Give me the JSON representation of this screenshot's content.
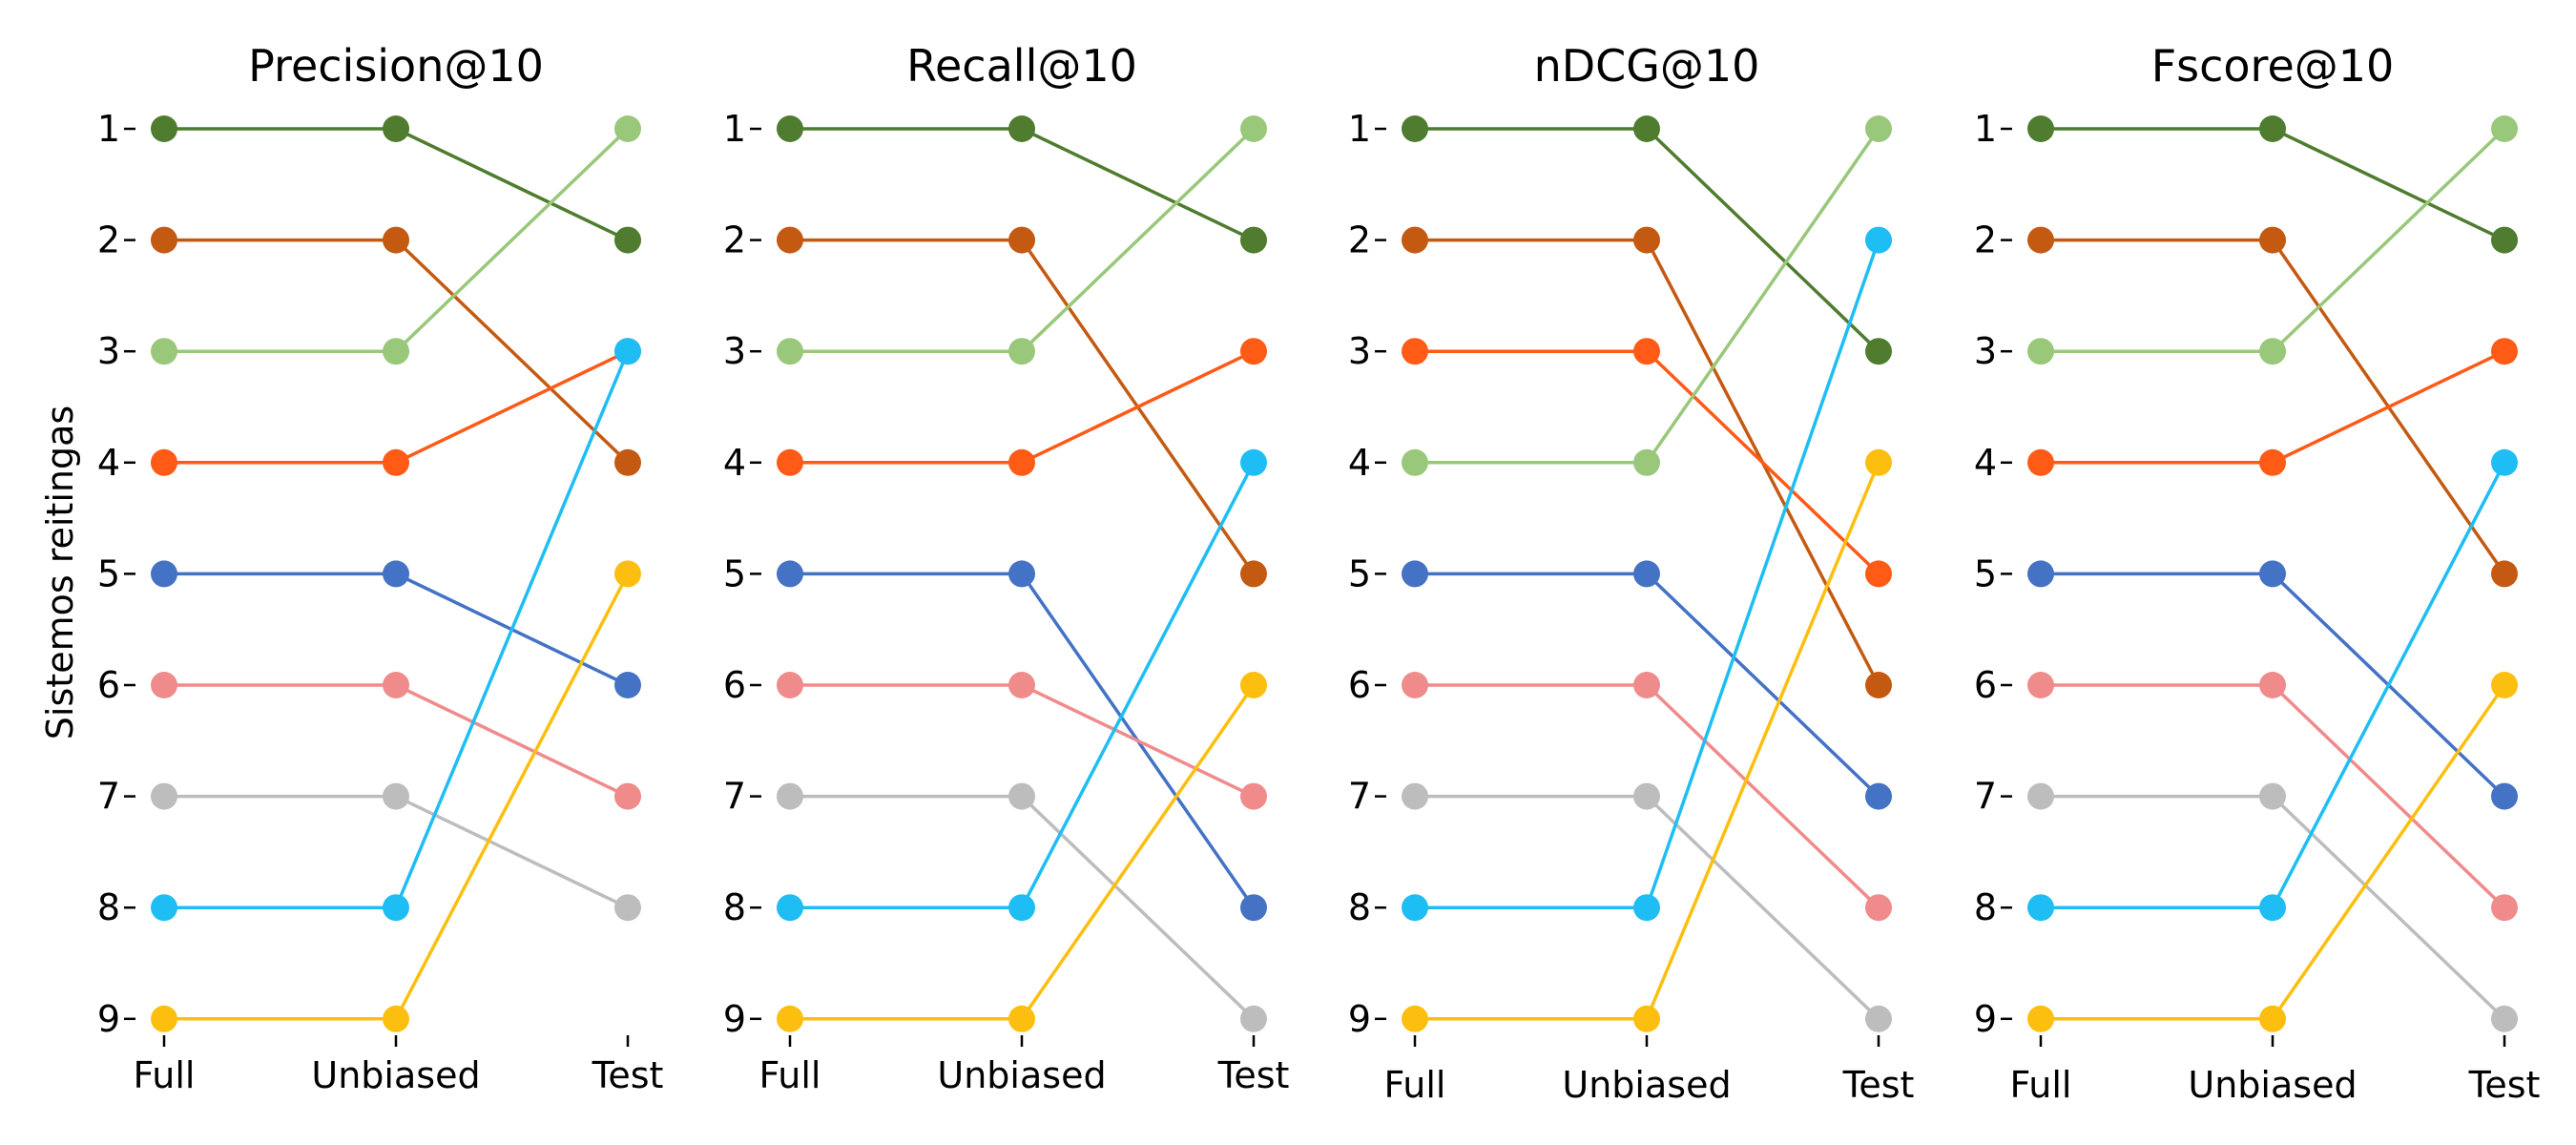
{
  "chart_data": {
    "type": "line",
    "ylabel": "Sistemos reitingas",
    "ylim": [
      1,
      9
    ],
    "y_inverted": true,
    "yticks": [
      "1",
      "2",
      "3",
      "4",
      "5",
      "6",
      "7",
      "8",
      "9"
    ],
    "categories": [
      "Full",
      "Unbiased",
      "Test"
    ],
    "grid": false,
    "legend": "none",
    "panels": [
      {
        "title": "Precision@10",
        "series": [
          {
            "color": "#4f7c2f",
            "values": [
              1,
              1,
              2
            ]
          },
          {
            "color": "#c45a12",
            "values": [
              2,
              2,
              4
            ]
          },
          {
            "color": "#99c87a",
            "values": [
              3,
              3,
              1
            ]
          },
          {
            "color": "#ff5a16",
            "values": [
              4,
              4,
              3
            ]
          },
          {
            "color": "#4472c4",
            "values": [
              5,
              5,
              6
            ]
          },
          {
            "color": "#f08b8b",
            "values": [
              6,
              6,
              7
            ]
          },
          {
            "color": "#bdbdbd",
            "values": [
              7,
              7,
              8
            ]
          },
          {
            "color": "#1ebef5",
            "values": [
              8,
              8,
              3
            ]
          },
          {
            "color": "#fdbf0f",
            "values": [
              9,
              9,
              5
            ]
          }
        ]
      },
      {
        "title": "Recall@10",
        "series": [
          {
            "color": "#4f7c2f",
            "values": [
              1,
              1,
              2
            ]
          },
          {
            "color": "#c45a12",
            "values": [
              2,
              2,
              5
            ]
          },
          {
            "color": "#99c87a",
            "values": [
              3,
              3,
              1
            ]
          },
          {
            "color": "#ff5a16",
            "values": [
              4,
              4,
              3
            ]
          },
          {
            "color": "#4472c4",
            "values": [
              5,
              5,
              8
            ]
          },
          {
            "color": "#f08b8b",
            "values": [
              6,
              6,
              7
            ]
          },
          {
            "color": "#bdbdbd",
            "values": [
              7,
              7,
              9
            ]
          },
          {
            "color": "#1ebef5",
            "values": [
              8,
              8,
              4
            ]
          },
          {
            "color": "#fdbf0f",
            "values": [
              9,
              9,
              6
            ]
          }
        ]
      },
      {
        "title": "nDCG@10",
        "series": [
          {
            "color": "#4f7c2f",
            "values": [
              1,
              1,
              3
            ]
          },
          {
            "color": "#c45a12",
            "values": [
              2,
              2,
              6
            ]
          },
          {
            "color": "#ff5a16",
            "values": [
              3,
              3,
              5
            ]
          },
          {
            "color": "#99c87a",
            "values": [
              4,
              4,
              1
            ]
          },
          {
            "color": "#4472c4",
            "values": [
              5,
              5,
              7
            ]
          },
          {
            "color": "#f08b8b",
            "values": [
              6,
              6,
              8
            ]
          },
          {
            "color": "#bdbdbd",
            "values": [
              7,
              7,
              9
            ]
          },
          {
            "color": "#1ebef5",
            "values": [
              8,
              8,
              2
            ]
          },
          {
            "color": "#fdbf0f",
            "values": [
              9,
              9,
              4
            ]
          }
        ]
      },
      {
        "title": "Fscore@10",
        "series": [
          {
            "color": "#4f7c2f",
            "values": [
              1,
              1,
              2
            ]
          },
          {
            "color": "#c45a12",
            "values": [
              2,
              2,
              5
            ]
          },
          {
            "color": "#99c87a",
            "values": [
              3,
              3,
              1
            ]
          },
          {
            "color": "#ff5a16",
            "values": [
              4,
              4,
              3
            ]
          },
          {
            "color": "#4472c4",
            "values": [
              5,
              5,
              7
            ]
          },
          {
            "color": "#f08b8b",
            "values": [
              6,
              6,
              8
            ]
          },
          {
            "color": "#bdbdbd",
            "values": [
              7,
              7,
              9
            ]
          },
          {
            "color": "#1ebef5",
            "values": [
              8,
              8,
              4
            ]
          },
          {
            "color": "#fdbf0f",
            "values": [
              9,
              9,
              6
            ]
          }
        ]
      }
    ]
  }
}
